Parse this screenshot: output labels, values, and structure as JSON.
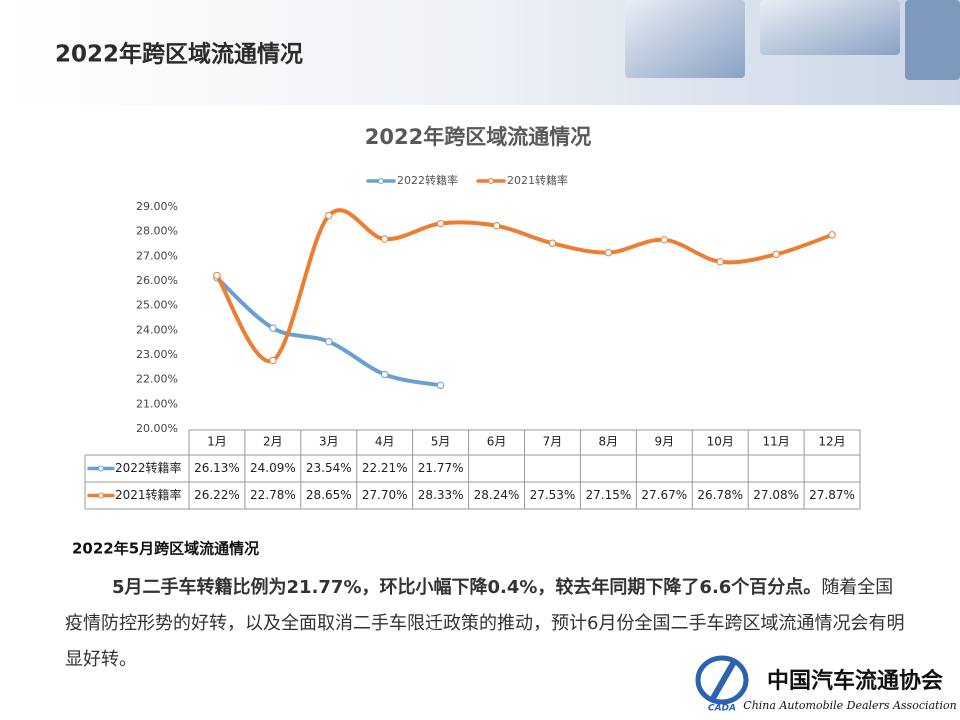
{
  "header": {
    "title": "2022年跨区域流通情况"
  },
  "chart_data": {
    "type": "line",
    "title": "2022年跨区域流通情况",
    "categories": [
      "1月",
      "2月",
      "3月",
      "4月",
      "5月",
      "6月",
      "7月",
      "8月",
      "9月",
      "10月",
      "11月",
      "12月"
    ],
    "series": [
      {
        "name": "2022转籍率",
        "color": "#6a9fd3",
        "values": [
          26.13,
          24.09,
          23.54,
          22.21,
          21.77,
          null,
          null,
          null,
          null,
          null,
          null,
          null
        ],
        "value_labels": [
          "26.13%",
          "24.09%",
          "23.54%",
          "22.21%",
          "21.77%",
          null,
          null,
          null,
          null,
          null,
          null,
          null
        ]
      },
      {
        "name": "2021转籍率",
        "color": "#ed7d31",
        "values": [
          26.22,
          22.78,
          28.65,
          27.7,
          28.33,
          28.24,
          27.53,
          27.15,
          27.67,
          26.78,
          27.08,
          27.87
        ],
        "value_labels": [
          "26.22%",
          "22.78%",
          "28.65%",
          "27.70%",
          "28.33%",
          "28.24%",
          "27.53%",
          "27.15%",
          "27.67%",
          "26.78%",
          "27.08%",
          "27.87%"
        ]
      }
    ],
    "ylim": [
      20,
      29
    ],
    "yticks": [
      {
        "value": 20,
        "label": "20.00%"
      },
      {
        "value": 21,
        "label": "21.00%"
      },
      {
        "value": 22,
        "label": "22.00%"
      },
      {
        "value": 23,
        "label": "23.00%"
      },
      {
        "value": 24,
        "label": "24.00%"
      },
      {
        "value": 25,
        "label": "25.00%"
      },
      {
        "value": 26,
        "label": "26.00%"
      },
      {
        "value": 27,
        "label": "27.00%"
      },
      {
        "value": 28,
        "label": "28.00%"
      },
      {
        "value": 29,
        "label": "29.00%"
      }
    ],
    "grid": false,
    "legend": "top",
    "smooth": true
  },
  "section": {
    "heading": "2022年5月跨区域流通情况",
    "bold_text": "5月二手车转籍比例为21.77%，环比小幅下降0.4%，较去年同期下降了6.6个百分点。",
    "text": "随着全国疫情防控形势的好转，以及全面取消二手车限迁政策的推动，预计6月份全国二手车跨区域流通情况会有明显好转。"
  },
  "logo": {
    "mark": "CADA",
    "name": "中国汽车流通协会",
    "english": "China Automobile Dealers Association"
  }
}
